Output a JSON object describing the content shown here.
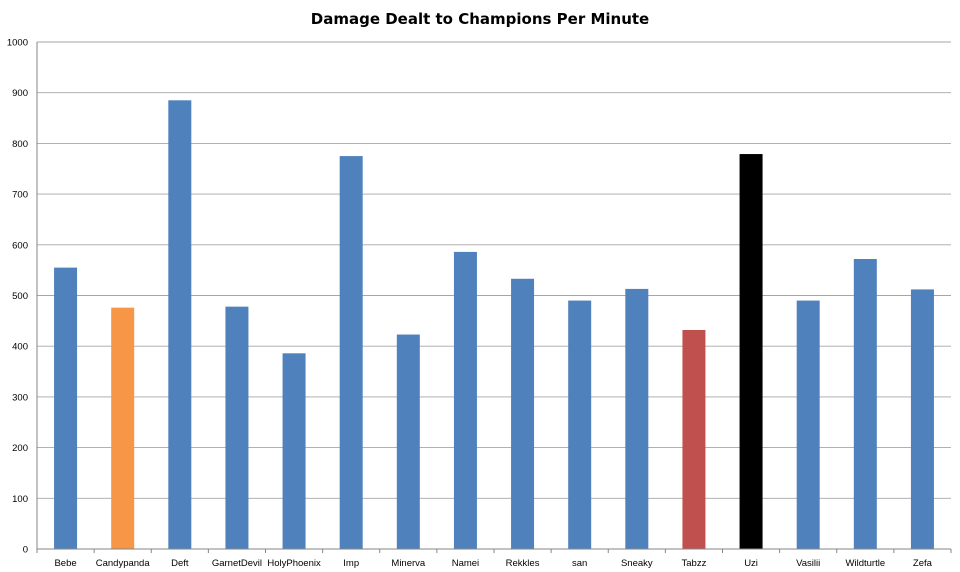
{
  "chart_data": {
    "type": "bar",
    "title": "Damage Dealt to Champions Per Minute",
    "xlabel": "",
    "ylabel": "",
    "ylim": [
      0,
      1000
    ],
    "yticks": [
      0,
      100,
      200,
      300,
      400,
      500,
      600,
      700,
      800,
      900,
      1000
    ],
    "grid": true,
    "legend": "none",
    "categories": [
      "Bebe",
      "Candypanda",
      "Deft",
      "GarnetDevil",
      "HolyPhoenix",
      "Imp",
      "Minerva",
      "Namei",
      "Rekkles",
      "san",
      "Sneaky",
      "Tabzz",
      "Uzi",
      "Vasilii",
      "Wildturtle",
      "Zefa"
    ],
    "values": [
      555,
      476,
      885,
      478,
      386,
      775,
      423,
      586,
      533,
      490,
      513,
      432,
      779,
      490,
      572,
      512
    ],
    "colors": [
      "#4f81bd",
      "#f79646",
      "#4f81bd",
      "#4f81bd",
      "#4f81bd",
      "#4f81bd",
      "#4f81bd",
      "#4f81bd",
      "#4f81bd",
      "#4f81bd",
      "#4f81bd",
      "#c0504d",
      "#000000",
      "#4f81bd",
      "#4f81bd",
      "#4f81bd"
    ]
  }
}
